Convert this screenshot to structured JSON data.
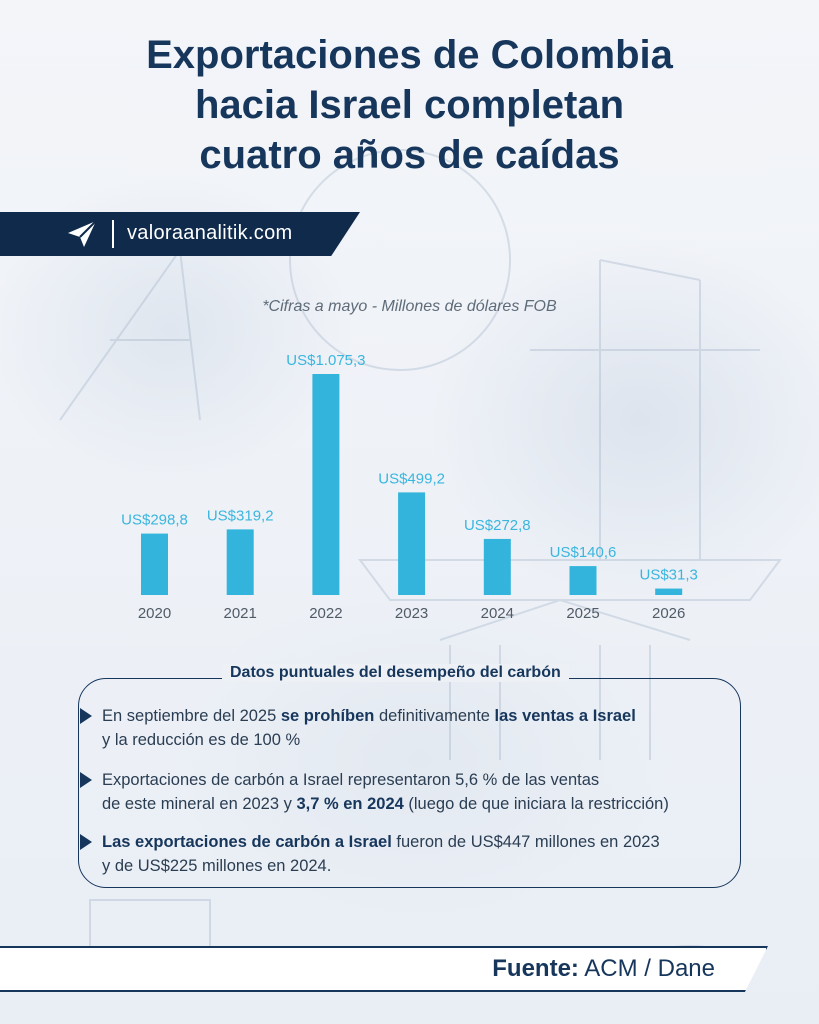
{
  "title_lines": [
    "Exportaciones de Colombia",
    "hacia Israel completan",
    "cuatro años de caídas"
  ],
  "brand": {
    "name": "valoraanalitik.com",
    "logo_icon": "paper-plane-logo-icon"
  },
  "chart_data": {
    "type": "bar",
    "subtitle": "*Cifras a mayo - Millones de dólares FOB",
    "categories": [
      "2020",
      "2021",
      "2022",
      "2023",
      "2024",
      "2025",
      "2026"
    ],
    "values": [
      298.8,
      319.2,
      1075.3,
      499.2,
      272.8,
      140.6,
      31.3
    ],
    "value_labels": [
      "US$298,8",
      "US$319,2",
      "US$1.075,3",
      "US$499,2",
      "US$272,8",
      "US$140,6",
      "US$31,3"
    ],
    "unit": "Millones de dólares FOB",
    "bar_color": "#32b4dc"
  },
  "facts": {
    "title": "Datos puntuales del desempeño del carbón",
    "items": [
      {
        "line1": [
          {
            "t": "En septiembre del 2025 ",
            "b": false
          },
          {
            "t": "se prohíben",
            "b": true
          },
          {
            "t": " definitivamente ",
            "b": false
          },
          {
            "t": "las ventas a Israel",
            "b": true
          }
        ],
        "line2": [
          {
            "t": "y la reducción  es de 100 %",
            "b": false
          }
        ]
      },
      {
        "line1": [
          {
            "t": "Exportaciones de carbón a Israel representaron 5,6 % de las ventas",
            "b": false
          }
        ],
        "line2": [
          {
            "t": "de este mineral en 2023 y ",
            "b": false
          },
          {
            "t": "3,7 % en 2024",
            "b": true
          },
          {
            "t": " (luego de que iniciara la restricción)",
            "b": false
          }
        ]
      },
      {
        "line1": [
          {
            "t": "Las exportaciones de carbón a Israel",
            "b": true
          },
          {
            "t": " fueron de US$447 millones en 2023",
            "b": false
          }
        ],
        "line2": [
          {
            "t": "y de US$225 millones en 2024.",
            "b": false
          }
        ]
      }
    ]
  },
  "source": {
    "label": "Fuente:",
    "value": "ACM / Dane"
  },
  "colors": {
    "navy": "#16365c",
    "band": "#0f2a4b",
    "accent": "#32b4dc"
  }
}
